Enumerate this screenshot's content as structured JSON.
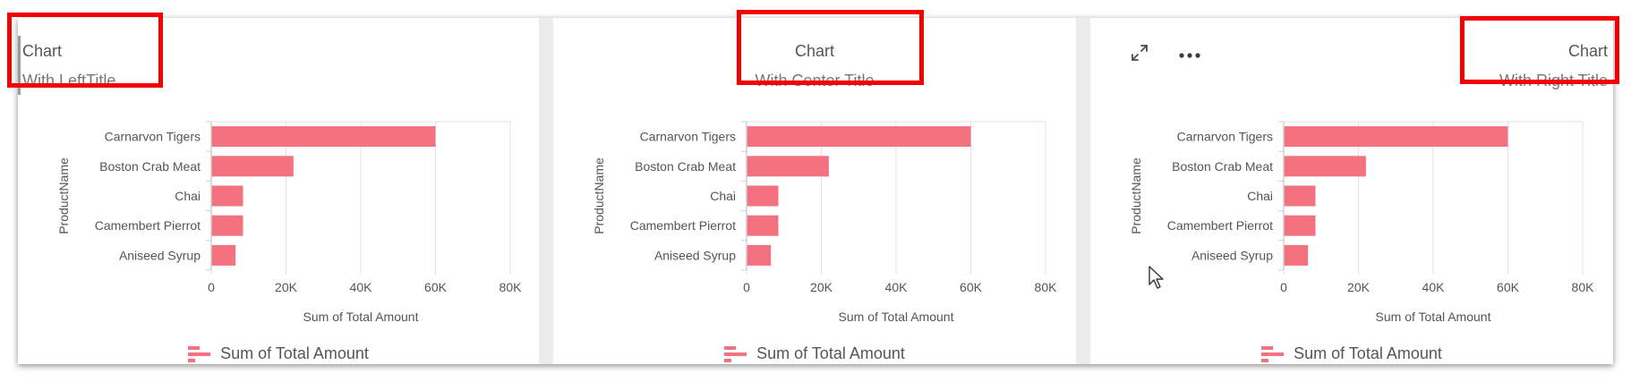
{
  "colors": {
    "bar": "#f4727f",
    "grid": "#e3e3e3",
    "axis": "#cfcfcf",
    "highlight": "#f40000"
  },
  "panels": [
    {
      "title": "Chart",
      "subtitle": "With LeftTitle",
      "title_alignment": "left",
      "legend_label": "Sum of Total Amount",
      "legend_icon": "bar-chart-icon"
    },
    {
      "title": "Chart",
      "subtitle": "With Center Title",
      "title_alignment": "center",
      "legend_label": "Sum of Total Amount",
      "legend_icon": "bar-chart-icon"
    },
    {
      "title": "Chart",
      "subtitle": "With Right Title",
      "title_alignment": "right",
      "legend_label": "Sum of Total Amount",
      "legend_icon": "bar-chart-icon",
      "toolbar": {
        "icons": [
          "expand-icon",
          "more-options-icon"
        ]
      }
    }
  ],
  "chart_data": [
    {
      "type": "bar",
      "orientation": "horizontal",
      "categories": [
        "Carnarvon Tigers",
        "Boston Crab Meat",
        "Chai",
        "Camembert Pierrot",
        "Aniseed Syrup"
      ],
      "values": [
        60000,
        22000,
        8500,
        8500,
        6500
      ],
      "xlabel": "Sum of Total Amount",
      "ylabel": "ProductName",
      "xlim": [
        0,
        80000
      ],
      "xticks": [
        "0",
        "20K",
        "40K",
        "60K",
        "80K"
      ],
      "legend": "Sum of Total Amount",
      "legend_position": "bottom",
      "grid": true
    },
    {
      "type": "bar",
      "orientation": "horizontal",
      "categories": [
        "Carnarvon Tigers",
        "Boston Crab Meat",
        "Chai",
        "Camembert Pierrot",
        "Aniseed Syrup"
      ],
      "values": [
        60000,
        22000,
        8500,
        8500,
        6500
      ],
      "xlabel": "Sum of Total Amount",
      "ylabel": "ProductName",
      "xlim": [
        0,
        80000
      ],
      "xticks": [
        "0",
        "20K",
        "40K",
        "60K",
        "80K"
      ],
      "legend": "Sum of Total Amount",
      "legend_position": "bottom",
      "grid": true
    },
    {
      "type": "bar",
      "orientation": "horizontal",
      "categories": [
        "Carnarvon Tigers",
        "Boston Crab Meat",
        "Chai",
        "Camembert Pierrot",
        "Aniseed Syrup"
      ],
      "values": [
        60000,
        22000,
        8500,
        8500,
        6500
      ],
      "xlabel": "Sum of Total Amount",
      "ylabel": "ProductName",
      "xlim": [
        0,
        80000
      ],
      "xticks": [
        "0",
        "20K",
        "40K",
        "60K",
        "80K"
      ],
      "legend": "Sum of Total Amount",
      "legend_position": "bottom",
      "grid": true
    }
  ]
}
